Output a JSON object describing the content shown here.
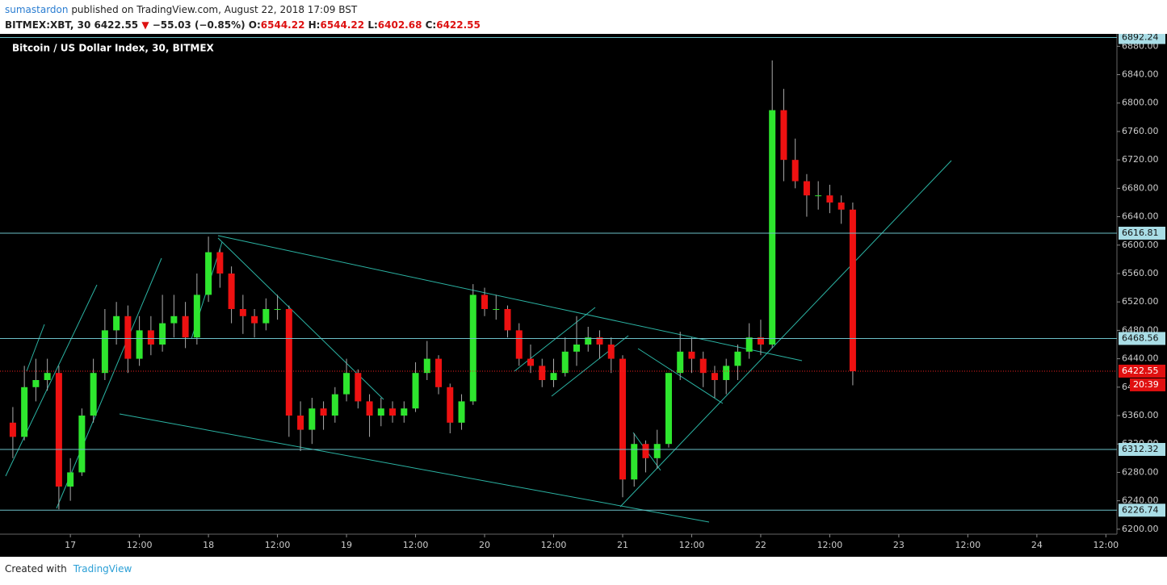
{
  "header": {
    "user": "sumastardon",
    "published": " published on TradingView.com, August 22, 2018 17:09 BST",
    "symbol": "BITMEX:XBT, 30",
    "price": "6422.55",
    "arrow": "▼",
    "change": "−55.03 (−0.85%)",
    "o_label": "O:",
    "o": "6544.22",
    "h_label": "H:",
    "h": "6544.22",
    "l_label": "L:",
    "l": "6402.68",
    "c_label": "C:",
    "c": "6422.55"
  },
  "chart_data": {
    "type": "candlestick",
    "title": "Bitcoin / US Dollar Index, 30, BITMEX",
    "up_color": "#2ee62e",
    "down_color": "#ee1111",
    "x": [
      "16 14:00",
      "16 16:00",
      "16 18:00",
      "16 20:00",
      "16 22:00",
      "17 00:00",
      "17 02:00",
      "17 04:00",
      "17 06:00",
      "17 08:00",
      "17 10:00",
      "17 12:00",
      "17 14:00",
      "17 16:00",
      "17 18:00",
      "17 20:00",
      "17 22:00",
      "18 00:00",
      "18 02:00",
      "18 04:00",
      "18 06:00",
      "18 08:00",
      "18 10:00",
      "18 12:00",
      "18 14:00",
      "18 16:00",
      "18 18:00",
      "18 20:00",
      "18 22:00",
      "19 00:00",
      "19 02:00",
      "19 04:00",
      "19 06:00",
      "19 08:00",
      "19 10:00",
      "19 12:00",
      "19 14:00",
      "19 16:00",
      "19 18:00",
      "19 20:00",
      "19 22:00",
      "20 00:00",
      "20 02:00",
      "20 04:00",
      "20 06:00",
      "20 08:00",
      "20 10:00",
      "20 12:00",
      "20 14:00",
      "20 16:00",
      "20 18:00",
      "20 20:00",
      "20 22:00",
      "21 00:00",
      "21 02:00",
      "21 04:00",
      "21 06:00",
      "21 08:00",
      "21 10:00",
      "21 12:00",
      "21 14:00",
      "21 16:00",
      "21 18:00",
      "21 20:00",
      "21 22:00",
      "22 00:00",
      "22 02:00",
      "22 04:00",
      "22 06:00",
      "22 08:00",
      "22 10:00",
      "22 12:00",
      "22 14:00",
      "22 16:00"
    ],
    "ohlc": [
      [
        6350,
        6372,
        6300,
        6330
      ],
      [
        6330,
        6430,
        6325,
        6400
      ],
      [
        6400,
        6440,
        6380,
        6410
      ],
      [
        6410,
        6440,
        6395,
        6420
      ],
      [
        6420,
        6430,
        6228,
        6260
      ],
      [
        6260,
        6300,
        6240,
        6280
      ],
      [
        6280,
        6370,
        6275,
        6360
      ],
      [
        6360,
        6440,
        6350,
        6420
      ],
      [
        6420,
        6510,
        6410,
        6480
      ],
      [
        6480,
        6520,
        6460,
        6500
      ],
      [
        6500,
        6515,
        6420,
        6440
      ],
      [
        6440,
        6500,
        6430,
        6480
      ],
      [
        6480,
        6500,
        6445,
        6460
      ],
      [
        6460,
        6530,
        6450,
        6490
      ],
      [
        6490,
        6530,
        6470,
        6500
      ],
      [
        6500,
        6520,
        6455,
        6470
      ],
      [
        6470,
        6560,
        6460,
        6530
      ],
      [
        6530,
        6612,
        6520,
        6590
      ],
      [
        6590,
        6595,
        6540,
        6560
      ],
      [
        6560,
        6570,
        6490,
        6510
      ],
      [
        6510,
        6530,
        6475,
        6500
      ],
      [
        6500,
        6510,
        6470,
        6490
      ],
      [
        6490,
        6525,
        6480,
        6510
      ],
      [
        6510,
        6530,
        6495,
        6510
      ],
      [
        6510,
        6515,
        6330,
        6360
      ],
      [
        6360,
        6380,
        6310,
        6340
      ],
      [
        6340,
        6385,
        6320,
        6370
      ],
      [
        6370,
        6380,
        6340,
        6360
      ],
      [
        6360,
        6400,
        6350,
        6390
      ],
      [
        6390,
        6440,
        6380,
        6420
      ],
      [
        6420,
        6425,
        6370,
        6380
      ],
      [
        6380,
        6390,
        6330,
        6360
      ],
      [
        6360,
        6385,
        6345,
        6370
      ],
      [
        6370,
        6380,
        6350,
        6360
      ],
      [
        6360,
        6380,
        6350,
        6370
      ],
      [
        6370,
        6435,
        6365,
        6420
      ],
      [
        6420,
        6465,
        6410,
        6440
      ],
      [
        6440,
        6445,
        6390,
        6400
      ],
      [
        6400,
        6405,
        6335,
        6350
      ],
      [
        6350,
        6390,
        6340,
        6380
      ],
      [
        6380,
        6545,
        6375,
        6530
      ],
      [
        6530,
        6540,
        6500,
        6510
      ],
      [
        6510,
        6530,
        6495,
        6510
      ],
      [
        6510,
        6515,
        6470,
        6480
      ],
      [
        6480,
        6490,
        6430,
        6440
      ],
      [
        6440,
        6460,
        6420,
        6430
      ],
      [
        6430,
        6440,
        6400,
        6410
      ],
      [
        6410,
        6440,
        6400,
        6420
      ],
      [
        6420,
        6470,
        6415,
        6450
      ],
      [
        6450,
        6500,
        6430,
        6460
      ],
      [
        6460,
        6485,
        6450,
        6470
      ],
      [
        6470,
        6480,
        6440,
        6460
      ],
      [
        6460,
        6470,
        6420,
        6440
      ],
      [
        6440,
        6445,
        6245,
        6270
      ],
      [
        6270,
        6335,
        6260,
        6320
      ],
      [
        6320,
        6325,
        6280,
        6300
      ],
      [
        6300,
        6340,
        6285,
        6320
      ],
      [
        6320,
        6420,
        6315,
        6420
      ],
      [
        6420,
        6478,
        6410,
        6450
      ],
      [
        6450,
        6470,
        6420,
        6440
      ],
      [
        6440,
        6450,
        6400,
        6420
      ],
      [
        6420,
        6430,
        6385,
        6410
      ],
      [
        6410,
        6440,
        6390,
        6430
      ],
      [
        6430,
        6460,
        6410,
        6450
      ],
      [
        6450,
        6490,
        6440,
        6470
      ],
      [
        6470,
        6495,
        6445,
        6460
      ],
      [
        6460,
        6860,
        6455,
        6790
      ],
      [
        6790,
        6820,
        6690,
        6720
      ],
      [
        6720,
        6750,
        6680,
        6690
      ],
      [
        6690,
        6700,
        6640,
        6670
      ],
      [
        6670,
        6690,
        6650,
        6670
      ],
      [
        6670,
        6685,
        6645,
        6660
      ],
      [
        6660,
        6670,
        6630,
        6650
      ],
      [
        6650,
        6660,
        6402.68,
        6422.55
      ]
    ],
    "xlim": [
      "16 12:45",
      "24 13:55"
    ],
    "xticks": [
      {
        "value": "17 00:00",
        "label": "17"
      },
      {
        "value": "17 12:00",
        "label": "12:00"
      },
      {
        "value": "18 00:00",
        "label": "18"
      },
      {
        "value": "18 12:00",
        "label": "12:00"
      },
      {
        "value": "19 00:00",
        "label": "19"
      },
      {
        "value": "19 12:00",
        "label": "12:00"
      },
      {
        "value": "20 00:00",
        "label": "20"
      },
      {
        "value": "20 12:00",
        "label": "12:00"
      },
      {
        "value": "21 00:00",
        "label": "21"
      },
      {
        "value": "21 12:00",
        "label": "12:00"
      },
      {
        "value": "22 00:00",
        "label": "22"
      },
      {
        "value": "22 12:00",
        "label": "12:00"
      },
      {
        "value": "23 00:00",
        "label": "23"
      },
      {
        "value": "23 12:00",
        "label": "12:00"
      },
      {
        "value": "24 00:00",
        "label": "24"
      },
      {
        "value": "24 12:00",
        "label": "12:00"
      }
    ],
    "ylim": [
      6193,
      6894
    ],
    "yticks": [
      {
        "value": 6200,
        "label": "6200.00"
      },
      {
        "value": 6240,
        "label": "6240.00"
      },
      {
        "value": 6280,
        "label": "6280.00"
      },
      {
        "value": 6320,
        "label": "6320.00"
      },
      {
        "value": 6360,
        "label": "6360.00"
      },
      {
        "value": 6400,
        "label": "6400.00"
      },
      {
        "value": 6440,
        "label": "6440.00"
      },
      {
        "value": 6480,
        "label": "6480.00"
      },
      {
        "value": 6520,
        "label": "6520.00"
      },
      {
        "value": 6560,
        "label": "6560.00"
      },
      {
        "value": 6600,
        "label": "6600.00"
      },
      {
        "value": 6640,
        "label": "6640.00"
      },
      {
        "value": 6680,
        "label": "6680.00"
      },
      {
        "value": 6720,
        "label": "6720.00"
      },
      {
        "value": 6760,
        "label": "6760.00"
      },
      {
        "value": 6800,
        "label": "6800.00"
      },
      {
        "value": 6840,
        "label": "6840.00"
      },
      {
        "value": 6880,
        "label": "6880.00"
      }
    ],
    "price_lines": [
      6892.24,
      6616.81,
      6468.56,
      6312.32,
      6226.74
    ],
    "last_price": 6422.55,
    "countdown": "20:39"
  }
}
